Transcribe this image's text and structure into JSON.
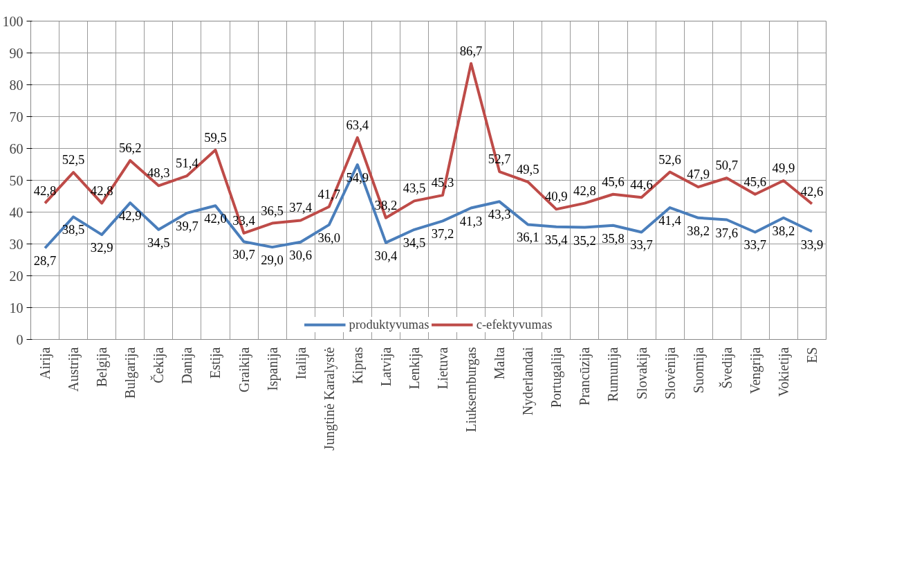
{
  "chart_data": {
    "type": "line",
    "categories": [
      "Airija",
      "Austrija",
      "Belgija",
      "Bulgarija",
      "Čekija",
      "Danija",
      "Estija",
      "Graikija",
      "Ispanija",
      "Italija",
      "Jungtinė Karalystė",
      "Kipras",
      "Latvija",
      "Lenkija",
      "Lietuva",
      "Liuksemburgas",
      "Malta",
      "Nyderlandai",
      "Portugalija",
      "Prancūzija",
      "Rumunija",
      "Slovakija",
      "Slovėnija",
      "Suomija",
      "Švedija",
      "Vengrija",
      "Vokietija",
      "ES"
    ],
    "series": [
      {
        "name": "produktyvumas",
        "color": "#4a7ebb",
        "values": [
          28.7,
          38.5,
          32.9,
          42.9,
          34.5,
          39.7,
          42.0,
          30.7,
          29.0,
          30.6,
          36.0,
          54.9,
          30.4,
          34.5,
          37.2,
          41.3,
          43.3,
          36.1,
          35.4,
          35.2,
          35.8,
          33.7,
          41.4,
          38.2,
          37.6,
          33.7,
          38.2,
          33.9
        ],
        "value_labels": [
          "28,7",
          "38,5",
          "32,9",
          "42,9",
          "34,5",
          "39,7",
          "42,0",
          "30,7",
          "29,0",
          "30,6",
          "36,0",
          "54,9",
          "30,4",
          "34,5",
          "37,2",
          "41,3",
          "43,3",
          "36,1",
          "35,4",
          "35,2",
          "35,8",
          "33,7",
          "41,4",
          "38,2",
          "37,6",
          "33,7",
          "38,2",
          "33,9"
        ]
      },
      {
        "name": "c-efektyvumas",
        "color": "#be4b48",
        "values": [
          42.8,
          52.5,
          42.8,
          56.2,
          48.3,
          51.4,
          59.5,
          33.4,
          36.5,
          37.4,
          41.7,
          63.4,
          38.2,
          43.5,
          45.3,
          86.7,
          52.7,
          49.5,
          40.9,
          42.8,
          45.6,
          44.6,
          52.6,
          47.9,
          50.7,
          45.6,
          49.9,
          42.6
        ],
        "value_labels": [
          "42,8",
          "52,5",
          "42,8",
          "56,2",
          "48,3",
          "51,4",
          "59,5",
          "33,4",
          "36,5",
          "37,4",
          "41,7",
          "63,4",
          "38,2",
          "43,5",
          "45,3",
          "86,7",
          "52,7",
          "49,5",
          "40,9",
          "42,8",
          "45,6",
          "44,6",
          "52,6",
          "47,9",
          "50,7",
          "45,6",
          "49,9",
          "42,6"
        ]
      }
    ],
    "ylim": [
      0,
      100
    ],
    "yticks": [
      0,
      10,
      20,
      30,
      40,
      50,
      60,
      70,
      80,
      90,
      100
    ],
    "grid": true,
    "legend": "bottom",
    "line_style": "solid",
    "marker": "none"
  }
}
